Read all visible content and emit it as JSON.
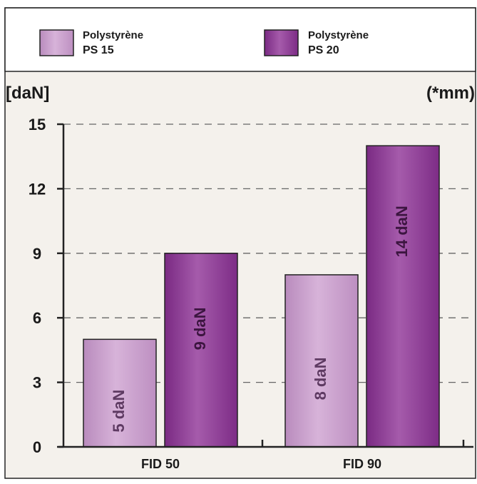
{
  "colors": {
    "ps15": "#c89ccb",
    "ps20": "#8a3592",
    "plot_bg": "#f4f1ec",
    "grid": "#666666",
    "text": "#1a1a1a"
  },
  "legend": {
    "items": [
      {
        "line1": "Polystyrène",
        "line2": "PS 15"
      },
      {
        "line1": "Polystyrène",
        "line2": "PS 20"
      }
    ]
  },
  "chart_data": {
    "type": "bar",
    "categories": [
      "FID 50",
      "FID 90"
    ],
    "series": [
      {
        "name": "Polystyrène PS 15",
        "values": [
          5,
          8
        ],
        "labels": [
          "5 daN",
          "8 daN"
        ]
      },
      {
        "name": "Polystyrène PS 20",
        "values": [
          9,
          14
        ],
        "labels": [
          "9 daN",
          "14 daN"
        ]
      }
    ],
    "ylabel": "[daN]",
    "xunit_label": "(*mm)",
    "ylim": [
      0,
      15
    ],
    "yticks": [
      0,
      3,
      6,
      9,
      12,
      15
    ],
    "grid": true,
    "legend_position": "top"
  }
}
